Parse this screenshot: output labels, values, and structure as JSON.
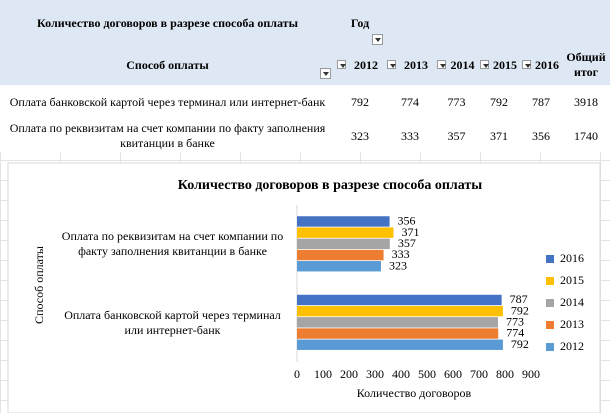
{
  "table": {
    "title": "Количество договоров в разрезе способа оплаты",
    "col_header": "Год",
    "columns": [
      "Способ оплаты",
      "2012",
      "2013",
      "2014",
      "2015",
      "2016",
      "Общий итог"
    ],
    "rows": [
      [
        "Оплата банковской картой через терминал или интернет-банк",
        "792",
        "774",
        "773",
        "792",
        "787",
        "3918"
      ],
      [
        "Оплата по реквизитам на счет компании по факту заполнения квитанции в банке",
        "323",
        "333",
        "357",
        "371",
        "356",
        "1740"
      ]
    ]
  },
  "chart_data": {
    "type": "hbar",
    "title": "Количество договоров в разрезе способа оплаты",
    "x_label": "Количество договоров",
    "y_label": "Способ оплаты",
    "categories": [
      "Оплата банковской картой через терминал или интернет-банк",
      "Оплата по реквизитам на счет компании по факту заполнения квитанции в банке"
    ],
    "series": [
      {
        "name": "2012",
        "color": "#5b9bd5",
        "values": [
          792,
          323
        ]
      },
      {
        "name": "2013",
        "color": "#ed7d31",
        "values": [
          774,
          333
        ]
      },
      {
        "name": "2014",
        "color": "#a5a5a5",
        "values": [
          773,
          357
        ]
      },
      {
        "name": "2015",
        "color": "#ffc000",
        "values": [
          792,
          371
        ]
      },
      {
        "name": "2016",
        "color": "#4472c4",
        "values": [
          787,
          356
        ]
      }
    ],
    "xlim": [
      0,
      900
    ],
    "xticks": [
      0,
      100,
      200,
      300,
      400,
      500,
      600,
      700,
      800,
      900
    ],
    "legend": "right",
    "data_labels": true
  }
}
